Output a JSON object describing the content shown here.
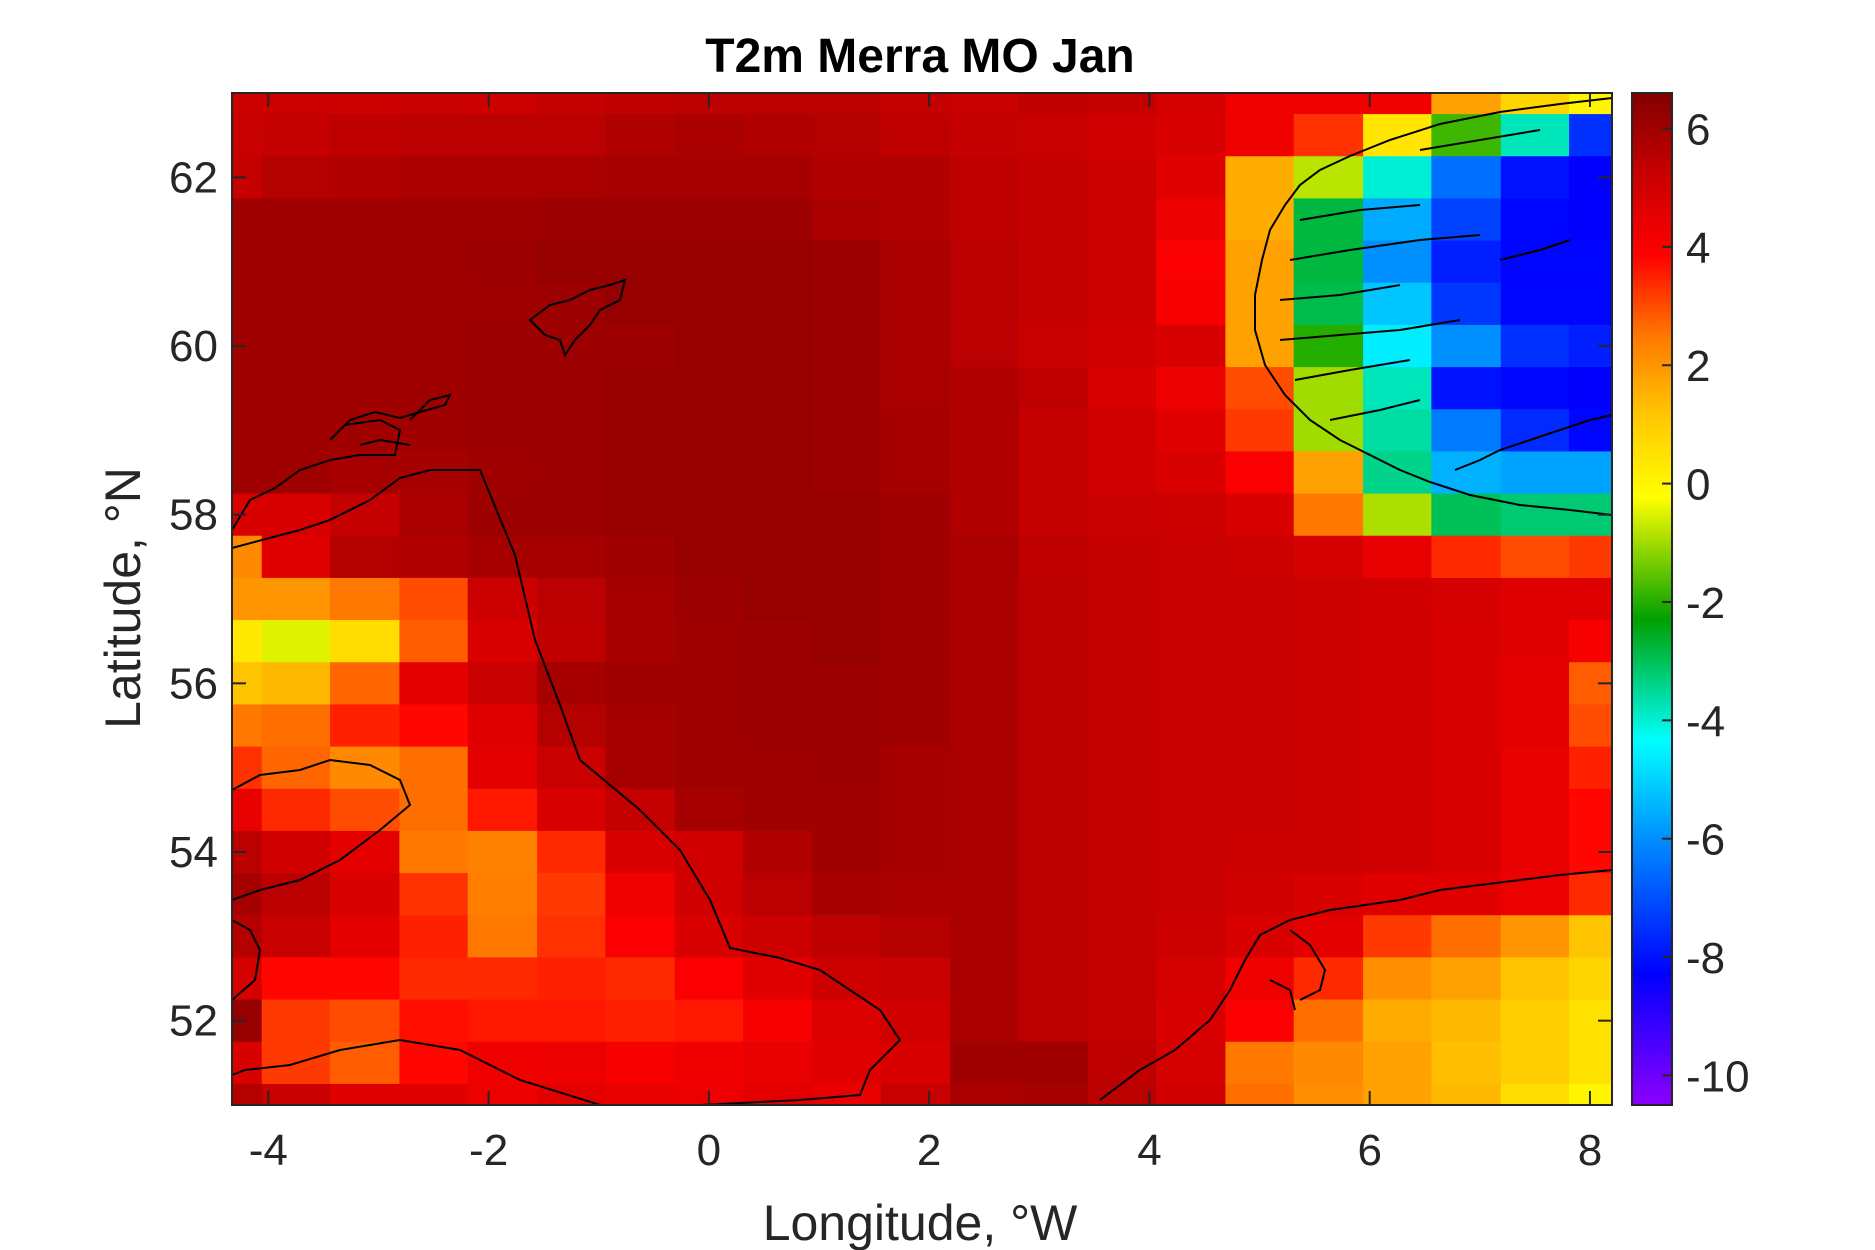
{
  "chart_data": {
    "type": "heatmap",
    "title": "T2m Merra MO Jan",
    "xlabel": "Longitude, °W",
    "ylabel": "Latitude, °N",
    "xlim": [
      -4.33,
      8.2
    ],
    "ylim": [
      51.0,
      63.0
    ],
    "x_ticks": [
      -4,
      -2,
      0,
      2,
      4,
      6,
      8
    ],
    "y_ticks": [
      52,
      54,
      56,
      58,
      60,
      62
    ],
    "colorbar": {
      "limits": [
        -10.5,
        6.6
      ],
      "ticks": [
        6,
        4,
        2,
        0,
        -2,
        -4,
        -6,
        -8,
        -10
      ],
      "colormap": "jet-like (violet-blue-cyan-green-yellow-orange-red-darkred)"
    },
    "grid": {
      "x_edges": [
        -4.33,
        -4.06,
        -3.44,
        -2.81,
        -2.19,
        -1.56,
        -0.94,
        -0.31,
        0.31,
        0.94,
        1.56,
        2.19,
        2.81,
        3.44,
        4.06,
        4.69,
        5.31,
        5.94,
        6.56,
        7.19,
        7.81,
        8.2
      ],
      "y_edges": [
        63.0,
        62.75,
        62.25,
        61.75,
        61.25,
        60.75,
        60.25,
        59.75,
        59.25,
        58.75,
        58.25,
        57.75,
        57.25,
        56.75,
        56.25,
        55.75,
        55.25,
        54.75,
        54.25,
        53.75,
        53.25,
        52.75,
        52.25,
        51.75,
        51.25,
        51.0
      ],
      "values": [
        [
          5.1,
          5.1,
          5.1,
          5.2,
          5.1,
          5.3,
          5.4,
          5.5,
          5.5,
          5.5,
          5.3,
          5.2,
          5.4,
          5.3,
          4.9,
          4.2,
          4.2,
          4.2,
          1.8,
          0.8,
          0.0
        ],
        [
          5.2,
          5.3,
          5.4,
          5.5,
          5.5,
          5.5,
          5.7,
          5.8,
          5.7,
          5.6,
          5.4,
          5.3,
          5.2,
          5.0,
          4.8,
          4.2,
          3.3,
          0.4,
          -1.8,
          -3.8,
          -7.5
        ],
        [
          5.3,
          5.6,
          5.7,
          5.8,
          5.8,
          5.8,
          5.9,
          5.9,
          5.9,
          5.7,
          5.7,
          5.4,
          5.3,
          5.1,
          4.6,
          1.6,
          -0.8,
          -4.0,
          -6.5,
          -8.0,
          -8.3
        ],
        [
          6.0,
          6.0,
          6.0,
          6.0,
          6.0,
          6.1,
          6.1,
          6.1,
          6.1,
          5.8,
          5.7,
          5.4,
          5.3,
          5.1,
          4.3,
          1.6,
          -2.8,
          -5.6,
          -7.2,
          -8.2,
          -8.3
        ],
        [
          6.0,
          6.0,
          6.0,
          6.0,
          6.1,
          6.2,
          6.2,
          6.2,
          6.2,
          6.1,
          5.8,
          5.5,
          5.3,
          5.1,
          4.0,
          1.8,
          -2.8,
          -6.0,
          -7.8,
          -8.2,
          -8.2
        ],
        [
          6.0,
          6.0,
          6.0,
          6.0,
          6.0,
          6.1,
          6.2,
          6.2,
          6.2,
          6.1,
          5.8,
          5.5,
          5.3,
          5.1,
          4.1,
          1.8,
          -2.9,
          -5.2,
          -7.4,
          -8.2,
          -8.2
        ],
        [
          6.0,
          6.0,
          6.0,
          6.0,
          6.1,
          6.1,
          6.1,
          6.2,
          6.2,
          6.1,
          5.8,
          5.5,
          5.2,
          5.0,
          4.8,
          1.8,
          -2.0,
          -4.6,
          -6.0,
          -7.5,
          -7.8
        ],
        [
          6.0,
          6.0,
          6.0,
          6.0,
          6.1,
          6.1,
          6.2,
          6.2,
          6.2,
          6.1,
          5.8,
          5.7,
          5.4,
          4.8,
          4.3,
          3.0,
          -1.0,
          -3.8,
          -8.0,
          -8.2,
          -8.3
        ],
        [
          6.0,
          6.0,
          6.0,
          6.0,
          6.1,
          6.1,
          6.2,
          6.2,
          6.2,
          6.1,
          5.9,
          5.7,
          5.3,
          5.0,
          4.6,
          3.2,
          -1.0,
          -3.6,
          -6.3,
          -7.6,
          -8.2
        ],
        [
          6.0,
          6.0,
          5.9,
          5.9,
          6.0,
          6.1,
          6.2,
          6.2,
          6.2,
          6.1,
          5.9,
          5.7,
          5.3,
          5.0,
          4.8,
          4.0,
          1.8,
          -3.4,
          -5.5,
          -5.7,
          -5.7
        ],
        [
          4.8,
          4.8,
          5.3,
          5.8,
          6.1,
          6.1,
          6.2,
          6.2,
          6.2,
          6.2,
          6.0,
          5.7,
          5.3,
          5.2,
          5.1,
          4.8,
          2.5,
          -0.9,
          -3.0,
          -3.2,
          -3.2
        ],
        [
          2.2,
          4.6,
          5.6,
          5.7,
          5.9,
          5.9,
          6.0,
          6.2,
          6.2,
          6.2,
          6.0,
          5.8,
          5.4,
          5.3,
          5.2,
          5.1,
          4.9,
          4.4,
          3.4,
          3.0,
          3.2
        ],
        [
          2.0,
          2.0,
          2.5,
          3.0,
          5.1,
          5.5,
          5.9,
          6.1,
          6.2,
          6.2,
          6.0,
          5.8,
          5.5,
          5.3,
          5.2,
          5.2,
          5.1,
          5.0,
          4.9,
          4.6,
          4.6
        ],
        [
          0.3,
          -0.5,
          0.6,
          2.8,
          4.8,
          5.4,
          5.9,
          6.0,
          6.1,
          6.2,
          6.0,
          5.8,
          5.5,
          5.3,
          5.2,
          5.2,
          5.1,
          5.0,
          4.8,
          4.6,
          4.1
        ],
        [
          1.2,
          1.4,
          2.7,
          4.5,
          5.2,
          5.9,
          6.0,
          6.0,
          6.1,
          6.1,
          6.0,
          5.8,
          5.5,
          5.3,
          5.2,
          5.2,
          5.1,
          5.0,
          4.8,
          4.5,
          2.8
        ],
        [
          2.5,
          2.6,
          3.5,
          3.8,
          4.6,
          5.6,
          5.9,
          6.0,
          6.1,
          6.1,
          6.0,
          5.8,
          5.5,
          5.3,
          5.2,
          5.2,
          5.1,
          5.0,
          4.8,
          4.5,
          3.0
        ],
        [
          3.3,
          2.7,
          2.2,
          2.6,
          4.5,
          5.2,
          5.9,
          6.0,
          6.0,
          6.1,
          5.9,
          5.8,
          5.5,
          5.3,
          5.2,
          5.2,
          5.1,
          5.0,
          4.8,
          4.4,
          3.5
        ],
        [
          4.4,
          3.4,
          3.0,
          2.6,
          3.6,
          4.8,
          5.3,
          5.9,
          6.0,
          6.0,
          5.9,
          5.8,
          5.5,
          5.3,
          5.2,
          5.2,
          5.1,
          5.0,
          4.8,
          4.4,
          3.8
        ],
        [
          5.5,
          5.0,
          4.5,
          2.5,
          2.3,
          3.4,
          4.8,
          5.0,
          5.7,
          6.0,
          5.9,
          5.8,
          5.5,
          5.3,
          5.2,
          5.1,
          5.1,
          5.0,
          4.8,
          4.4,
          3.8
        ],
        [
          5.9,
          5.5,
          4.8,
          3.3,
          2.4,
          3.2,
          4.2,
          5.0,
          5.5,
          5.9,
          5.8,
          5.8,
          5.5,
          5.3,
          5.2,
          5.0,
          4.8,
          4.6,
          4.6,
          4.3,
          3.4
        ],
        [
          5.6,
          5.2,
          4.5,
          3.5,
          2.5,
          3.3,
          4.0,
          4.8,
          5.1,
          5.4,
          5.6,
          5.8,
          5.5,
          5.3,
          5.1,
          4.8,
          4.5,
          3.2,
          2.6,
          2.0,
          1.2
        ],
        [
          4.9,
          3.8,
          3.8,
          3.4,
          3.4,
          3.5,
          3.4,
          4.0,
          4.6,
          5.1,
          5.2,
          5.8,
          5.5,
          5.3,
          4.9,
          4.2,
          3.4,
          2.1,
          1.8,
          1.2,
          0.8
        ],
        [
          6.2,
          3.2,
          3.0,
          3.7,
          3.6,
          3.6,
          3.5,
          3.6,
          4.1,
          4.7,
          5.0,
          5.8,
          5.5,
          5.3,
          4.8,
          4.0,
          2.6,
          1.6,
          1.4,
          1.0,
          0.5
        ],
        [
          4.8,
          3.2,
          2.8,
          3.8,
          4.2,
          4.3,
          4.1,
          4.2,
          4.4,
          4.6,
          4.8,
          6.0,
          6.0,
          5.4,
          4.9,
          2.5,
          2.2,
          1.8,
          1.3,
          1.0,
          0.5
        ],
        [
          5.6,
          5.2,
          4.6,
          4.6,
          4.3,
          4.5,
          4.4,
          4.3,
          4.5,
          4.4,
          5.2,
          5.8,
          5.9,
          5.5,
          5.0,
          2.6,
          2.1,
          1.8,
          1.4,
          0.6,
          0.0
        ]
      ]
    }
  }
}
